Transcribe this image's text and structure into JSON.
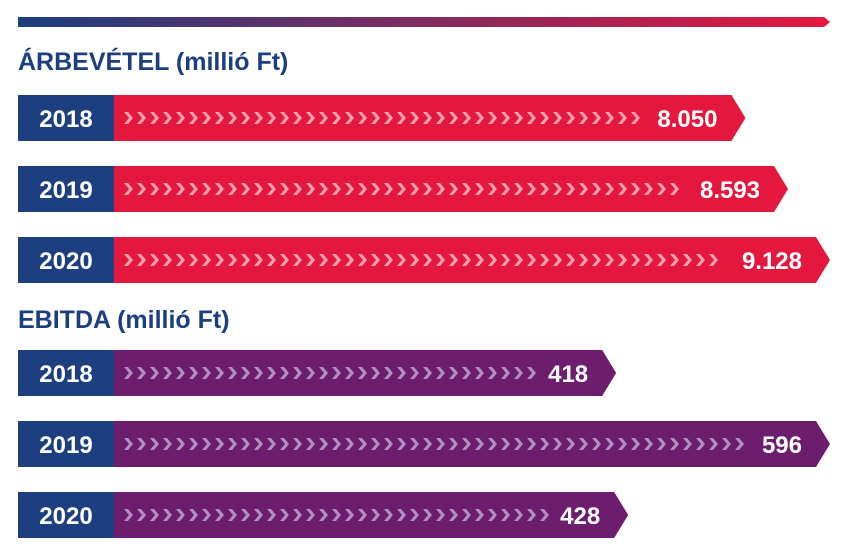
{
  "chart_data": [
    {
      "type": "bar",
      "title": "ÁRBEVÉTEL (millió Ft)",
      "categories": [
        "2018",
        "2019",
        "2020"
      ],
      "values": [
        8050,
        8593,
        9128
      ],
      "value_labels": [
        "8.050",
        "8.593",
        "9.128"
      ],
      "orientation": "horizontal",
      "color": "#e4173e"
    },
    {
      "type": "bar",
      "title": "EBITDA (millió Ft)",
      "categories": [
        "2018",
        "2019",
        "2020"
      ],
      "values": [
        418,
        596,
        428
      ],
      "value_labels": [
        "418",
        "596",
        "428"
      ],
      "orientation": "horizontal",
      "color": "#6c1d6e"
    }
  ],
  "colors": {
    "year_box": "#1d3f80",
    "title_text": "#1d3f80",
    "revenue_bar": "#e4173e",
    "revenue_chevron": "#f7a1ae",
    "ebitda_bar": "#6c1d6e",
    "ebitda_chevron": "#b18fc0",
    "top_rule_start": "#1d3f80",
    "top_rule_end": "#e4173e"
  }
}
